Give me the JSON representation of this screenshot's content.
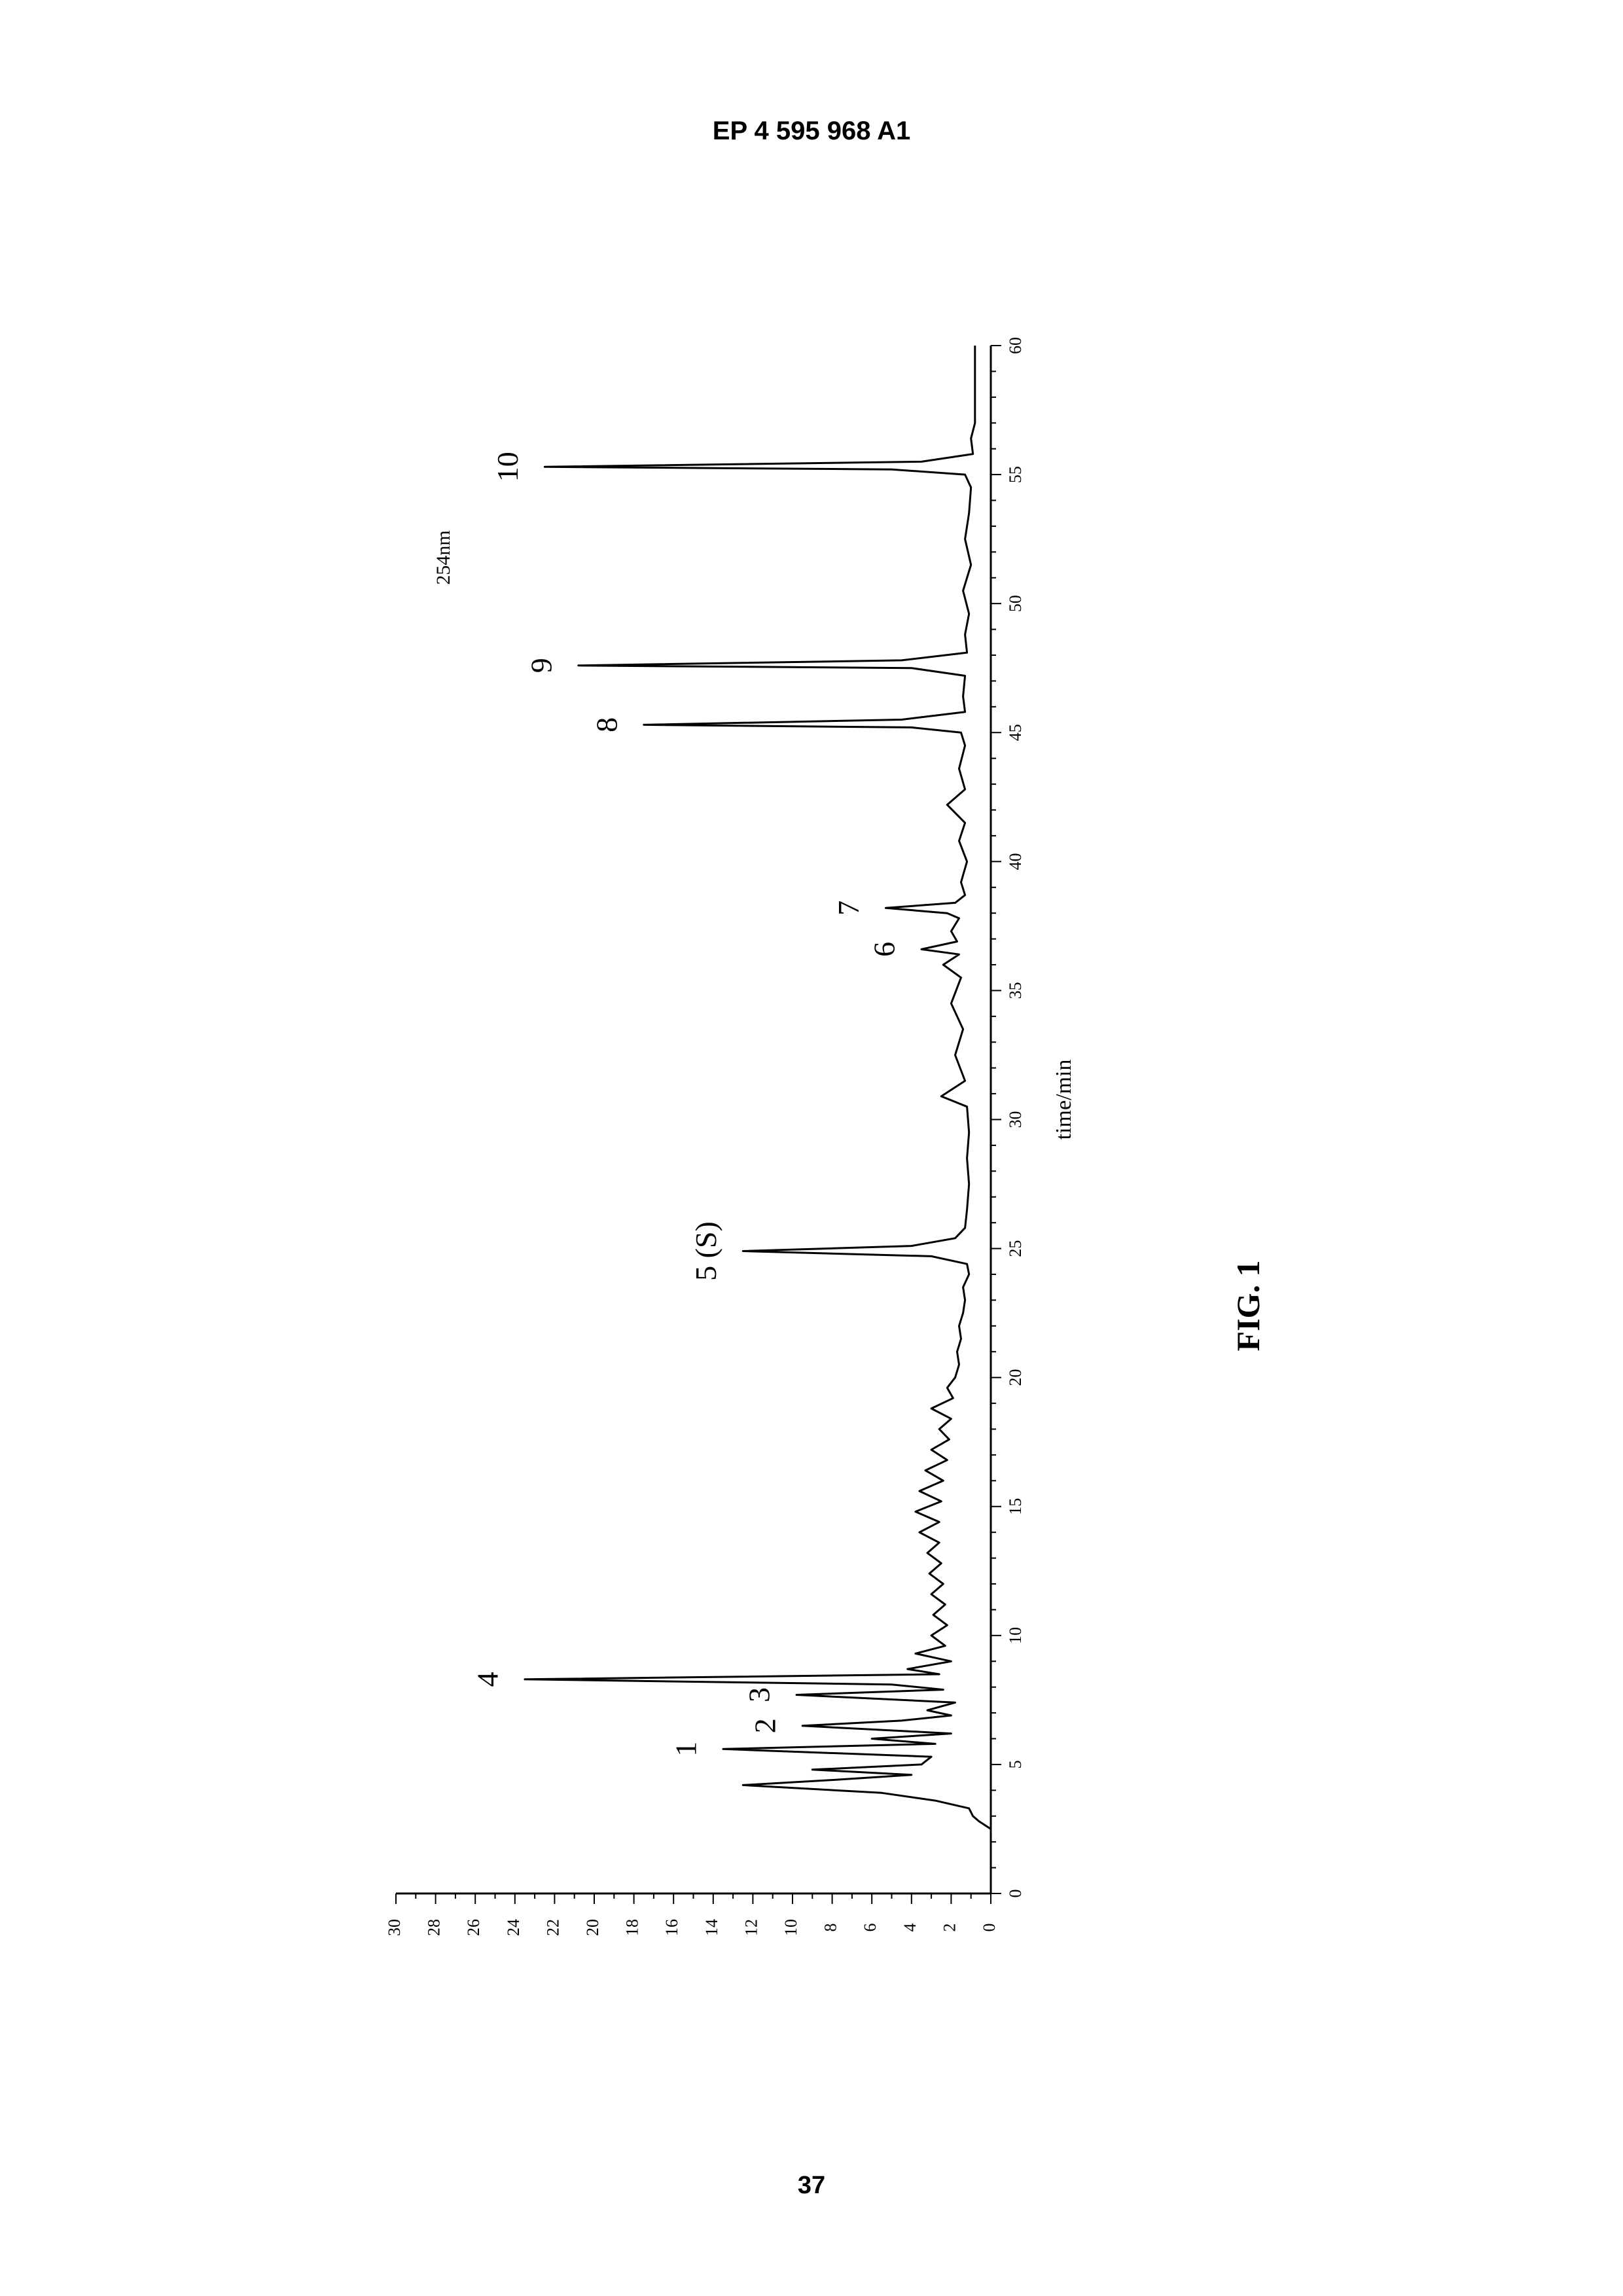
{
  "document": {
    "header": "EP 4 595 968 A1",
    "figure_caption": "FIG. 1",
    "page_number": "37"
  },
  "chart_data": {
    "type": "line",
    "title": "254nm",
    "xlabel": "time/min",
    "ylabel": "",
    "xlim": [
      0,
      60
    ],
    "ylim": [
      0,
      30
    ],
    "x_ticks": [
      0,
      5,
      10,
      15,
      20,
      25,
      30,
      35,
      40,
      45,
      50,
      55,
      60
    ],
    "y_ticks": [
      0,
      2,
      4,
      6,
      8,
      10,
      12,
      14,
      16,
      18,
      20,
      22,
      24,
      26,
      28,
      30
    ],
    "grid": false,
    "orientation": "rotated 90 degrees counter-clockwise on the page",
    "line_color": "#000000",
    "peaks": [
      {
        "label": "1",
        "x": 5.6,
        "y": 13.5
      },
      {
        "label": "2",
        "x": 6.5,
        "y": 9.5
      },
      {
        "label": "3",
        "x": 7.7,
        "y": 9.8
      },
      {
        "label": "4",
        "x": 8.3,
        "y": 23.5
      },
      {
        "label": "5 (S)",
        "x": 24.9,
        "y": 12.5
      },
      {
        "label": "6",
        "x": 36.6,
        "y": 3.5
      },
      {
        "label": "7",
        "x": 38.2,
        "y": 5.3
      },
      {
        "label": "8",
        "x": 45.3,
        "y": 17.5
      },
      {
        "label": "9",
        "x": 47.6,
        "y": 20.8
      },
      {
        "label": "10",
        "x": 55.3,
        "y": 22.5
      }
    ],
    "x": [
      0,
      2.5,
      2.8,
      3.0,
      3.3,
      3.6,
      3.9,
      4.2,
      4.4,
      4.6,
      4.8,
      5.0,
      5.3,
      5.6,
      5.8,
      6.0,
      6.2,
      6.5,
      6.7,
      6.9,
      7.1,
      7.4,
      7.7,
      7.9,
      8.1,
      8.3,
      8.5,
      8.7,
      9.0,
      9.3,
      9.6,
      10.0,
      10.4,
      10.8,
      11.2,
      11.6,
      12.0,
      12.4,
      12.8,
      13.2,
      13.6,
      14.0,
      14.4,
      14.8,
      15.2,
      15.6,
      16.0,
      16.4,
      16.8,
      17.2,
      17.6,
      18.0,
      18.4,
      18.8,
      19.2,
      19.6,
      20.0,
      20.5,
      21.0,
      21.5,
      22.0,
      22.5,
      23.0,
      23.5,
      24.0,
      24.4,
      24.7,
      24.9,
      25.1,
      25.4,
      25.8,
      26.5,
      27.5,
      28.5,
      29.5,
      30.5,
      30.9,
      31.5,
      32.5,
      33.5,
      34.5,
      35.5,
      36.0,
      36.4,
      36.6,
      36.9,
      37.3,
      37.8,
      38.0,
      38.2,
      38.4,
      38.7,
      39.2,
      40.0,
      40.8,
      41.5,
      42.2,
      42.8,
      43.6,
      44.5,
      45.0,
      45.2,
      45.3,
      45.5,
      45.8,
      46.4,
      47.2,
      47.5,
      47.6,
      47.8,
      48.1,
      48.8,
      49.6,
      50.5,
      51.5,
      52.5,
      53.5,
      54.5,
      55.0,
      55.2,
      55.3,
      55.5,
      55.8,
      56.4,
      57.0,
      58.5,
      59.5
    ],
    "y": [
      null,
      0,
      0.6,
      0.9,
      1.1,
      2.8,
      5.5,
      12.5,
      8.0,
      4.0,
      9.0,
      3.5,
      3.0,
      13.5,
      2.8,
      6.0,
      2.0,
      9.5,
      4.5,
      2.0,
      3.2,
      1.8,
      9.8,
      2.4,
      5.0,
      23.5,
      2.6,
      4.2,
      2.0,
      3.8,
      2.3,
      3.0,
      2.2,
      2.9,
      2.3,
      3.0,
      2.4,
      3.1,
      2.5,
      3.2,
      2.6,
      3.6,
      2.6,
      3.8,
      2.5,
      3.6,
      2.4,
      3.3,
      2.2,
      3.0,
      2.1,
      2.6,
      2.0,
      3.0,
      1.9,
      2.2,
      1.8,
      1.6,
      1.7,
      1.5,
      1.6,
      1.4,
      1.3,
      1.4,
      1.1,
      1.2,
      3.0,
      12.5,
      4.0,
      1.8,
      1.3,
      1.2,
      1.1,
      1.2,
      1.1,
      1.2,
      2.5,
      1.3,
      1.8,
      1.4,
      2.0,
      1.5,
      2.4,
      1.6,
      3.5,
      1.7,
      2.0,
      1.6,
      2.2,
      5.3,
      1.8,
      1.3,
      1.5,
      1.2,
      1.6,
      1.3,
      2.2,
      1.3,
      1.6,
      1.3,
      1.5,
      4.0,
      17.5,
      4.5,
      1.3,
      1.4,
      1.3,
      4.0,
      20.8,
      4.5,
      1.2,
      1.3,
      1.1,
      1.4,
      1.0,
      1.3,
      1.1,
      1.0,
      1.3,
      5.0,
      22.5,
      3.5,
      0.9,
      1.0,
      0.8,
      0.8,
      0.8
    ]
  }
}
